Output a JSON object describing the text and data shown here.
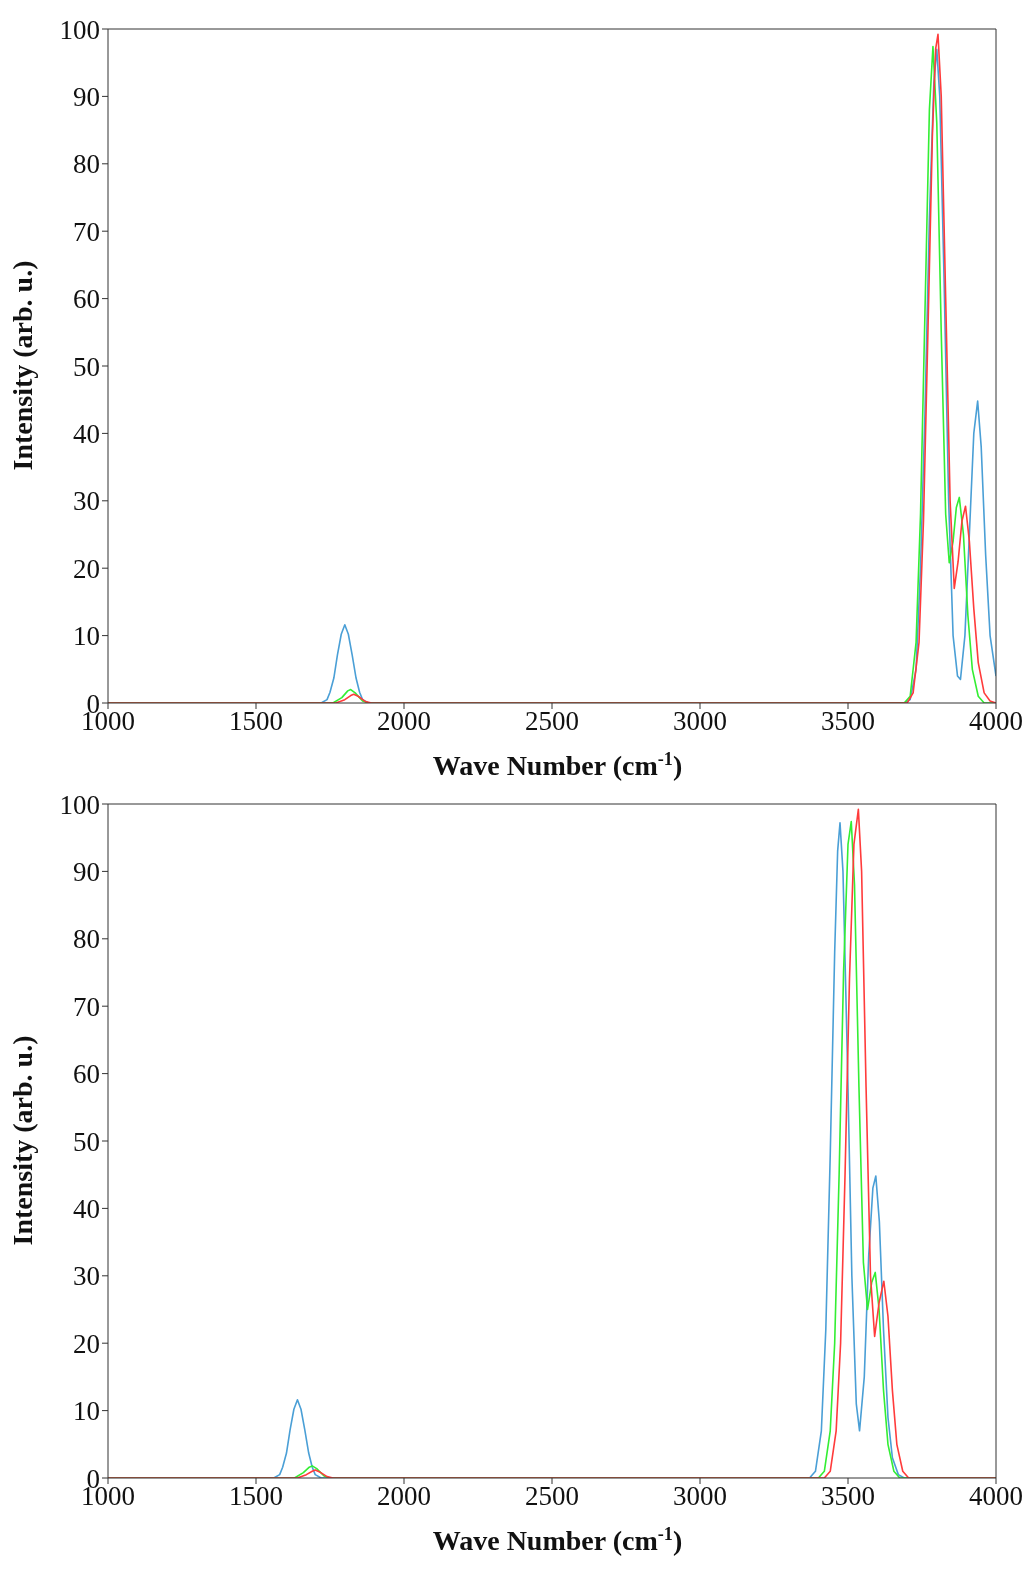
{
  "chart_data": [
    {
      "type": "line",
      "xlabel": "Wave Number (cm$^{-1}$)",
      "ylabel": "Intensity (arb. u.)",
      "xlim": [
        1000,
        4000
      ],
      "xticks": [
        1000,
        1500,
        2000,
        2500,
        3000,
        3500,
        4000
      ],
      "ylim": [
        0,
        100
      ],
      "yticks": [
        0,
        10,
        20,
        30,
        40,
        50,
        60,
        70,
        80,
        90,
        100
      ],
      "marker": "none",
      "line_style": "solid",
      "series": [
        {
          "color": "#4a9fd6",
          "x": [
            1000,
            1720,
            1740,
            1750,
            1763,
            1775,
            1788,
            1800,
            1812,
            1825,
            1838,
            1850,
            1860,
            1880,
            3690,
            3710,
            3730,
            3745,
            3760,
            3775,
            3790,
            3800,
            3810,
            3825,
            3840,
            3855,
            3870,
            3880,
            3895,
            3910,
            3925,
            3938,
            3950,
            3965,
            3980,
            4000
          ],
          "values": [
            0,
            0,
            0.5,
            1.6,
            3.7,
            7.1,
            10.2,
            11.6,
            10.2,
            7.1,
            3.7,
            1.6,
            0.5,
            0,
            0,
            0.5,
            5,
            20,
            43,
            72,
            92,
            97,
            90,
            62,
            30,
            10,
            4,
            3.5,
            10,
            25,
            40,
            44.8,
            38,
            22,
            10,
            4
          ]
        },
        {
          "color": "#33ee33",
          "x": [
            1000,
            1760,
            1790,
            1810,
            1820,
            1835,
            1860,
            1880,
            3690,
            3710,
            3730,
            3745,
            3760,
            3775,
            3787,
            3800,
            3815,
            3830,
            3842,
            3855,
            3866,
            3876,
            3890,
            3905,
            3920,
            3940,
            3960,
            4000
          ],
          "values": [
            0,
            0,
            0.8,
            1.8,
            2,
            1.5,
            0.3,
            0,
            0,
            1,
            9,
            28,
            58,
            88,
            97.4,
            86,
            55,
            28,
            20.8,
            24,
            29,
            30.5,
            25,
            13,
            5,
            1,
            0,
            0
          ]
        },
        {
          "color": "#ff3b3b",
          "x": [
            1000,
            1770,
            1800,
            1820,
            1830,
            1845,
            1870,
            1890,
            3700,
            3720,
            3740,
            3755,
            3770,
            3785,
            3796,
            3804,
            3815,
            3830,
            3845,
            3859,
            3872,
            3885,
            3897,
            3910,
            3925,
            3940,
            3960,
            3980,
            4000
          ],
          "values": [
            0,
            0,
            0.5,
            1.1,
            1.3,
            1,
            0.2,
            0,
            0,
            1.5,
            9,
            27,
            55,
            84,
            97,
            99.2,
            90,
            60,
            30,
            17,
            21,
            27,
            29.2,
            24,
            14,
            6,
            1.5,
            0.3,
            0
          ]
        }
      ]
    },
    {
      "type": "line",
      "xlabel": "Wave Number (cm$^{-1}$)",
      "ylabel": "Intensity (arb. u.)",
      "xlim": [
        1000,
        4000
      ],
      "xticks": [
        1000,
        1500,
        2000,
        2500,
        3000,
        3500,
        4000
      ],
      "ylim": [
        0,
        100
      ],
      "yticks": [
        0,
        10,
        20,
        30,
        40,
        50,
        60,
        70,
        80,
        90,
        100
      ],
      "marker": "none",
      "line_style": "solid",
      "series": [
        {
          "color": "#4a9fd6",
          "x": [
            1000,
            1560,
            1580,
            1590,
            1603,
            1615,
            1628,
            1640,
            1652,
            1665,
            1678,
            1690,
            1700,
            1720,
            3370,
            3390,
            3410,
            3425,
            3440,
            3455,
            3465,
            3473,
            3483,
            3498,
            3513,
            3528,
            3539,
            3555,
            3570,
            3584,
            3594,
            3606,
            3620,
            3635,
            3650,
            3670,
            3690,
            4000
          ],
          "values": [
            0,
            0,
            0.5,
            1.6,
            3.7,
            7.1,
            10.2,
            11.6,
            10.2,
            7.1,
            3.7,
            1.6,
            0.5,
            0,
            0,
            1,
            7,
            22,
            48,
            78,
            93,
            97.2,
            90,
            62,
            30,
            11,
            7,
            15,
            33,
            43,
            44.8,
            38,
            22,
            9,
            3,
            0.5,
            0,
            0
          ]
        },
        {
          "color": "#33ee33",
          "x": [
            1000,
            1630,
            1660,
            1680,
            1690,
            1705,
            1730,
            1750,
            3400,
            3420,
            3440,
            3455,
            3470,
            3485,
            3500,
            3511,
            3522,
            3537,
            3552,
            3566,
            3580,
            3592,
            3605,
            3620,
            3635,
            3655,
            3675,
            4000
          ],
          "values": [
            0,
            0,
            0.8,
            1.6,
            1.8,
            1.4,
            0.3,
            0,
            0,
            1,
            7,
            20,
            45,
            75,
            94,
            97.4,
            88,
            58,
            32,
            25,
            29,
            30.5,
            25,
            13,
            5,
            1,
            0,
            0
          ]
        },
        {
          "color": "#ff3b3b",
          "x": [
            1000,
            1640,
            1670,
            1690,
            1700,
            1715,
            1740,
            1760,
            3420,
            3440,
            3460,
            3475,
            3490,
            3505,
            3520,
            3535,
            3546,
            3561,
            3576,
            3590,
            3605,
            3621,
            3635,
            3650,
            3665,
            3685,
            3705,
            4000
          ],
          "values": [
            0,
            0,
            0.5,
            1,
            1.2,
            0.9,
            0.2,
            0,
            0,
            1,
            7,
            20,
            45,
            74,
            94,
            99.2,
            90,
            58,
            30,
            21,
            26,
            29.2,
            24,
            13,
            5,
            1,
            0,
            0
          ]
        }
      ]
    }
  ]
}
